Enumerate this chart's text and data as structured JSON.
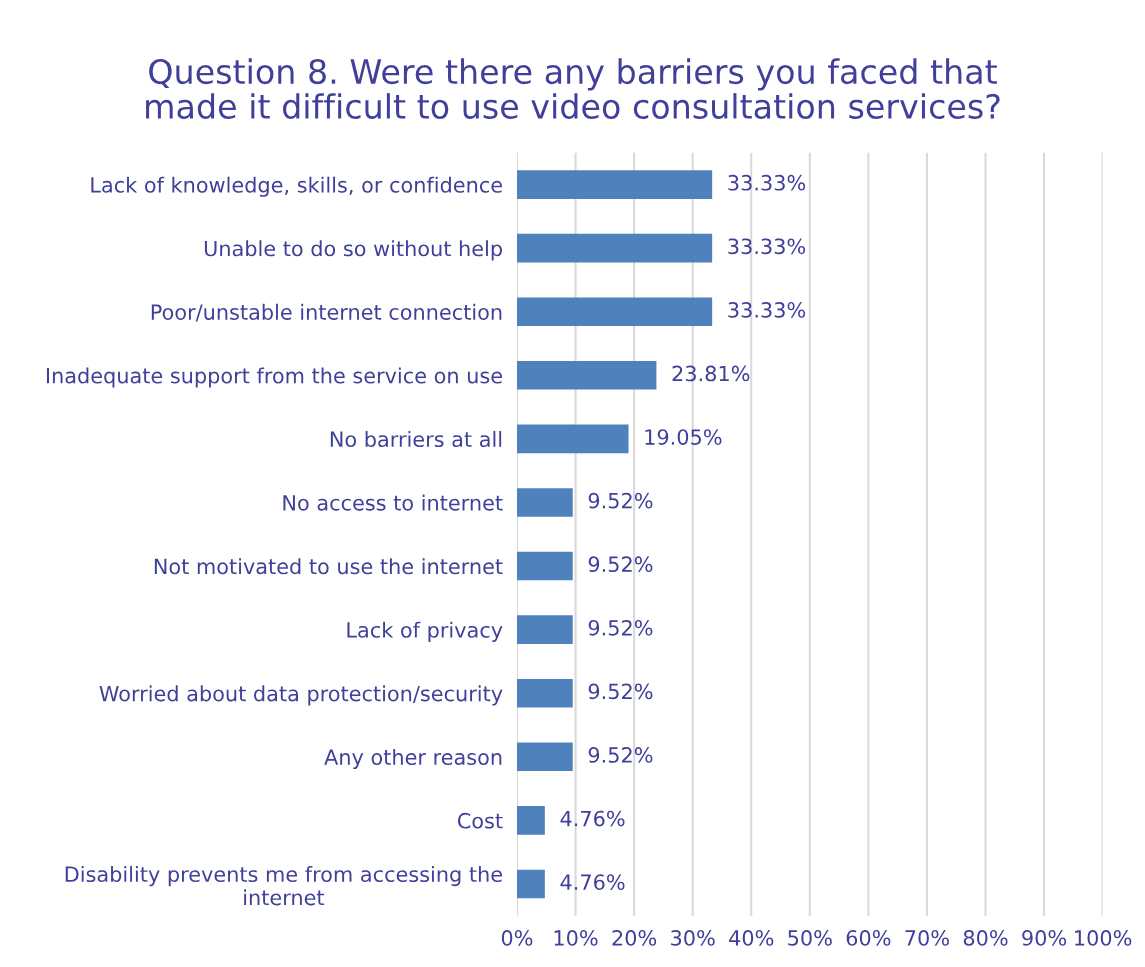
{
  "chart_data": {
    "type": "bar",
    "orientation": "horizontal",
    "title": "Question 8. Were there any barriers you faced that\nmade it difficult to use video consultation services?",
    "categories": [
      "Lack of knowledge, skills, or confidence",
      "Unable to do so without help",
      "Poor/unstable internet connection",
      "Inadequate support from the service on use",
      "No barriers at all",
      "No access to internet",
      "Not motivated to use the internet",
      "Lack of privacy",
      "Worried about data protection/security",
      "Any other reason",
      "Cost",
      "Disability prevents me from accessing the\ninternet"
    ],
    "values": [
      33.33,
      33.33,
      33.33,
      23.81,
      19.05,
      9.52,
      9.52,
      9.52,
      9.52,
      9.52,
      4.76,
      4.76
    ],
    "value_labels": [
      "33.33%",
      "33.33%",
      "33.33%",
      "23.81%",
      "19.05%",
      "9.52%",
      "9.52%",
      "9.52%",
      "9.52%",
      "9.52%",
      "4.76%",
      "4.76%"
    ],
    "color": "#4f81bd",
    "xlim": [
      0,
      100
    ],
    "xticks": [
      {
        "value": 0,
        "label": "0%"
      },
      {
        "value": 10,
        "label": "10%"
      },
      {
        "value": 20,
        "label": "20%"
      },
      {
        "value": 30,
        "label": "30%"
      },
      {
        "value": 40,
        "label": "40%"
      },
      {
        "value": 50,
        "label": "50%"
      },
      {
        "value": 60,
        "label": "60%"
      },
      {
        "value": 70,
        "label": "70%"
      },
      {
        "value": 80,
        "label": "80%"
      },
      {
        "value": 90,
        "label": "90%"
      },
      {
        "value": 100,
        "label": "100%"
      }
    ],
    "grid": "x"
  }
}
